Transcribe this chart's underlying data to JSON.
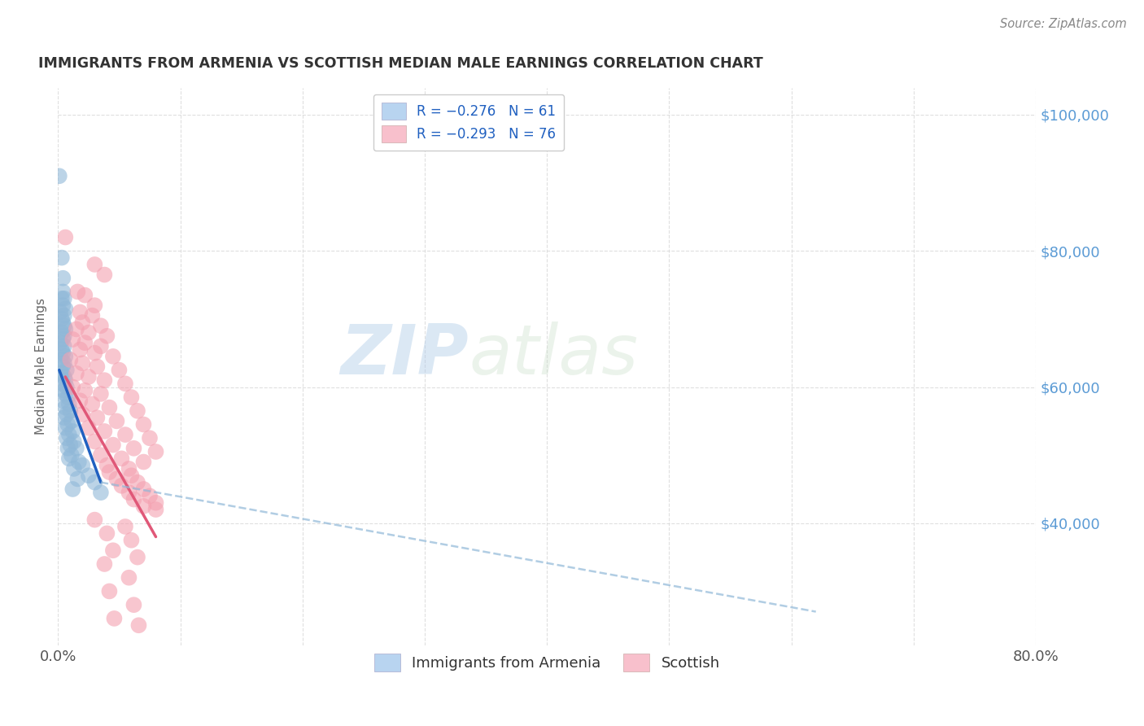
{
  "title": "IMMIGRANTS FROM ARMENIA VS SCOTTISH MEDIAN MALE EARNINGS CORRELATION CHART",
  "source": "Source: ZipAtlas.com",
  "ylabel": "Median Male Earnings",
  "y_ticks": [
    40000,
    60000,
    80000,
    100000
  ],
  "y_tick_labels": [
    "$40,000",
    "$60,000",
    "$80,000",
    "$100,000"
  ],
  "watermark_zip": "ZIP",
  "watermark_atlas": "atlas",
  "armenia_color": "#90b8d8",
  "scottish_color": "#f4a0b0",
  "armenia_line_color": "#2060c0",
  "scottish_line_color": "#e05878",
  "dash_color": "#90b8d8",
  "background_color": "#ffffff",
  "grid_color": "#d8d8d8",
  "title_color": "#333333",
  "right_axis_color": "#5b9bd5",
  "source_color": "#888888",
  "legend_box_color_1": "#b8d4f0",
  "legend_box_color_2": "#f8c0cc",
  "xmin": 0.0,
  "xmax": 0.8,
  "ymin": 22000,
  "ymax": 104000,
  "armenia_scatter": [
    [
      0.001,
      91000
    ],
    [
      0.003,
      79000
    ],
    [
      0.004,
      76000
    ],
    [
      0.004,
      74000
    ],
    [
      0.005,
      73000
    ],
    [
      0.003,
      73000
    ],
    [
      0.004,
      72000
    ],
    [
      0.006,
      71500
    ],
    [
      0.002,
      71000
    ],
    [
      0.005,
      70500
    ],
    [
      0.003,
      70000
    ],
    [
      0.004,
      69500
    ],
    [
      0.005,
      69000
    ],
    [
      0.006,
      68500
    ],
    [
      0.003,
      68000
    ],
    [
      0.005,
      67500
    ],
    [
      0.004,
      67000
    ],
    [
      0.002,
      66500
    ],
    [
      0.005,
      66000
    ],
    [
      0.003,
      65500
    ],
    [
      0.004,
      65000
    ],
    [
      0.006,
      64500
    ],
    [
      0.003,
      64000
    ],
    [
      0.005,
      63500
    ],
    [
      0.004,
      63000
    ],
    [
      0.007,
      62500
    ],
    [
      0.003,
      62000
    ],
    [
      0.005,
      61500
    ],
    [
      0.006,
      61000
    ],
    [
      0.004,
      60500
    ],
    [
      0.007,
      60000
    ],
    [
      0.005,
      59500
    ],
    [
      0.006,
      59000
    ],
    [
      0.008,
      58500
    ],
    [
      0.004,
      58000
    ],
    [
      0.009,
      57500
    ],
    [
      0.006,
      57000
    ],
    [
      0.01,
      56500
    ],
    [
      0.007,
      56000
    ],
    [
      0.005,
      55500
    ],
    [
      0.011,
      55000
    ],
    [
      0.008,
      54500
    ],
    [
      0.006,
      54000
    ],
    [
      0.012,
      53500
    ],
    [
      0.009,
      53000
    ],
    [
      0.007,
      52500
    ],
    [
      0.013,
      52000
    ],
    [
      0.01,
      51500
    ],
    [
      0.008,
      51000
    ],
    [
      0.015,
      51000
    ],
    [
      0.011,
      50000
    ],
    [
      0.009,
      49500
    ],
    [
      0.017,
      49000
    ],
    [
      0.02,
      48500
    ],
    [
      0.013,
      48000
    ],
    [
      0.025,
      47000
    ],
    [
      0.016,
      46500
    ],
    [
      0.03,
      46000
    ],
    [
      0.012,
      45000
    ],
    [
      0.035,
      44500
    ]
  ],
  "scottish_scatter": [
    [
      0.006,
      82000
    ],
    [
      0.03,
      78000
    ],
    [
      0.038,
      76500
    ],
    [
      0.016,
      74000
    ],
    [
      0.022,
      73500
    ],
    [
      0.03,
      72000
    ],
    [
      0.018,
      71000
    ],
    [
      0.028,
      70500
    ],
    [
      0.02,
      69500
    ],
    [
      0.035,
      69000
    ],
    [
      0.015,
      68500
    ],
    [
      0.025,
      68000
    ],
    [
      0.04,
      67500
    ],
    [
      0.012,
      67000
    ],
    [
      0.022,
      66500
    ],
    [
      0.035,
      66000
    ],
    [
      0.018,
      65500
    ],
    [
      0.03,
      65000
    ],
    [
      0.045,
      64500
    ],
    [
      0.01,
      64000
    ],
    [
      0.02,
      63500
    ],
    [
      0.032,
      63000
    ],
    [
      0.05,
      62500
    ],
    [
      0.015,
      62000
    ],
    [
      0.025,
      61500
    ],
    [
      0.038,
      61000
    ],
    [
      0.055,
      60500
    ],
    [
      0.012,
      60000
    ],
    [
      0.022,
      59500
    ],
    [
      0.035,
      59000
    ],
    [
      0.06,
      58500
    ],
    [
      0.018,
      58000
    ],
    [
      0.028,
      57500
    ],
    [
      0.042,
      57000
    ],
    [
      0.065,
      56500
    ],
    [
      0.02,
      56000
    ],
    [
      0.032,
      55500
    ],
    [
      0.048,
      55000
    ],
    [
      0.07,
      54500
    ],
    [
      0.025,
      54000
    ],
    [
      0.038,
      53500
    ],
    [
      0.055,
      53000
    ],
    [
      0.075,
      52500
    ],
    [
      0.03,
      52000
    ],
    [
      0.045,
      51500
    ],
    [
      0.062,
      51000
    ],
    [
      0.08,
      50500
    ],
    [
      0.035,
      50000
    ],
    [
      0.052,
      49500
    ],
    [
      0.07,
      49000
    ],
    [
      0.04,
      48500
    ],
    [
      0.058,
      48000
    ],
    [
      0.042,
      47500
    ],
    [
      0.06,
      47000
    ],
    [
      0.048,
      46500
    ],
    [
      0.065,
      46000
    ],
    [
      0.052,
      45500
    ],
    [
      0.07,
      45000
    ],
    [
      0.058,
      44500
    ],
    [
      0.075,
      44000
    ],
    [
      0.062,
      43500
    ],
    [
      0.08,
      43000
    ],
    [
      0.07,
      42500
    ],
    [
      0.08,
      42000
    ],
    [
      0.03,
      40500
    ],
    [
      0.055,
      39500
    ],
    [
      0.04,
      38500
    ],
    [
      0.06,
      37500
    ],
    [
      0.045,
      36000
    ],
    [
      0.065,
      35000
    ],
    [
      0.038,
      34000
    ],
    [
      0.058,
      32000
    ],
    [
      0.042,
      30000
    ],
    [
      0.062,
      28000
    ],
    [
      0.046,
      26000
    ],
    [
      0.066,
      25000
    ]
  ],
  "blue_line": {
    "x0": 0.001,
    "y0": 62500,
    "x1": 0.035,
    "y1": 46000
  },
  "pink_line": {
    "x0": 0.006,
    "y0": 61500,
    "x1": 0.08,
    "y1": 38000
  },
  "dash_line": {
    "x0": 0.035,
    "y0": 46000,
    "x1": 0.62,
    "y1": 27000
  }
}
